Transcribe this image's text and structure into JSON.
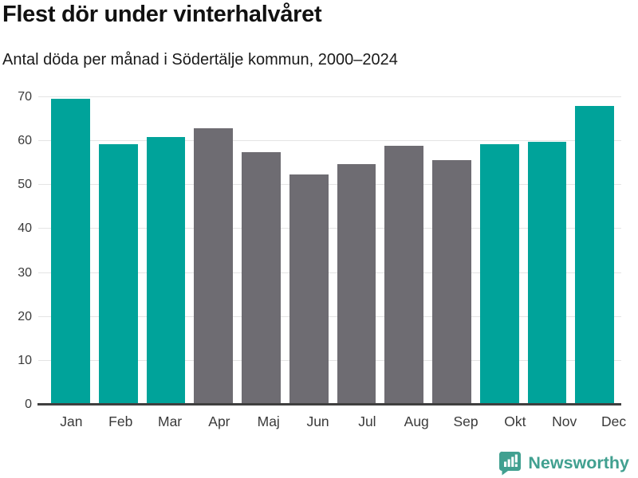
{
  "header": {
    "title": "Flest dör under vinterhalvåret",
    "subtitle": "Antal döda per månad i Södertälje kommun, 2000–2024"
  },
  "colors": {
    "winter_bar": "#00a39a",
    "summer_bar": "#6e6c72",
    "gridline": "#e4e4e4",
    "axis_line": "#3f3f3f",
    "tick_label": "#3a3a3a",
    "title_text": "#111111",
    "brand": "#41a090"
  },
  "chart_data": {
    "type": "bar",
    "title": "Flest dör under vinterhalvåret",
    "subtitle": "Antal döda per månad i Södertälje kommun, 2000–2024",
    "categories": [
      "Jan",
      "Feb",
      "Mar",
      "Apr",
      "Maj",
      "Jun",
      "Jul",
      "Aug",
      "Sep",
      "Okt",
      "Nov",
      "Dec"
    ],
    "values": [
      69.7,
      59.3,
      61.0,
      63.0,
      57.4,
      52.4,
      54.8,
      58.9,
      55.6,
      59.3,
      59.8,
      68.0
    ],
    "bar_colors": [
      "#00a39a",
      "#00a39a",
      "#00a39a",
      "#6e6c72",
      "#6e6c72",
      "#6e6c72",
      "#6e6c72",
      "#6e6c72",
      "#6e6c72",
      "#00a39a",
      "#00a39a",
      "#00a39a"
    ],
    "xlabel": "",
    "ylabel": "",
    "ylim": [
      0,
      70
    ],
    "yticks": [
      0,
      10,
      20,
      30,
      40,
      50,
      60,
      70
    ],
    "grid": true,
    "legend": false
  },
  "footer": {
    "brand_name": "Newsworthy",
    "logo_icon": "bar-chart-speech-bubble-icon"
  }
}
